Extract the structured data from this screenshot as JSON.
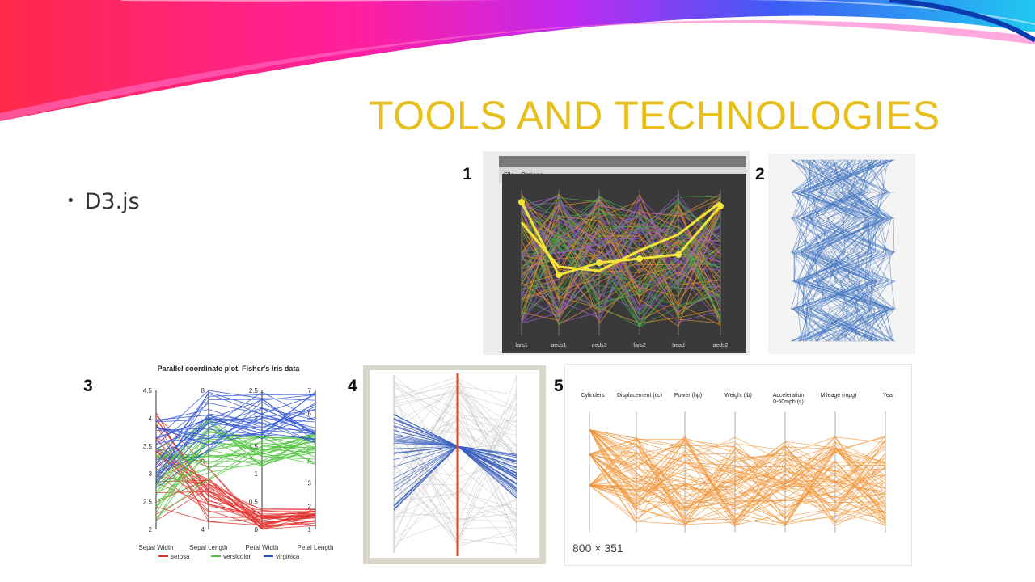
{
  "slide": {
    "title": "TOOLS AND TECHNOLOGIES",
    "bullets": [
      "D3.js"
    ]
  },
  "figures": [
    {
      "number": "1",
      "menu": [
        "File",
        "Options"
      ],
      "axes": [
        "fars1",
        "aeds1",
        "aeds3",
        "fars2",
        "head",
        "aeds2"
      ]
    },
    {
      "number": "2"
    },
    {
      "number": "3",
      "title": "Parallel coordinate plot, Fisher's Iris data",
      "axes": [
        "Sepal Width",
        "Sepal Length",
        "Petal Width",
        "Petal Length"
      ],
      "legend": [
        "setosa",
        "versicolor",
        "virginica"
      ],
      "colors": {
        "setosa": "#e0302a",
        "versicolor": "#4cc23a",
        "virginica": "#2d52d6"
      }
    },
    {
      "number": "4"
    },
    {
      "number": "5",
      "axes": [
        "Cylinders",
        "Displacement (cc)",
        "Power (hp)",
        "Weight (lb)",
        "Acceleration\n0-60mph (s)",
        "Mileage (mpg)",
        "Year"
      ],
      "size_label": "800 × 351"
    }
  ]
}
